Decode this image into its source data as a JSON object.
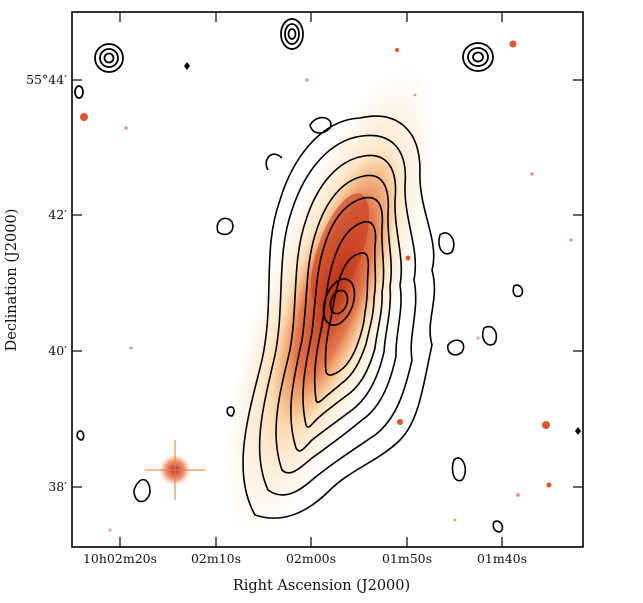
{
  "figure": {
    "xlabel": "Right Ascension (J2000)",
    "ylabel": "Declination (J2000)",
    "x_ticks": [
      "10h02m20s",
      "02m10s",
      "02m00s",
      "01m50s",
      "01m40s"
    ],
    "y_ticks": [
      "55°44′",
      "42′",
      "40′",
      "38′"
    ],
    "colors": {
      "galaxy_core": "#c0301a",
      "galaxy_halo": "#f7b45a",
      "contours": "#000000",
      "frame": "#000000",
      "background": "#ffffff"
    }
  }
}
